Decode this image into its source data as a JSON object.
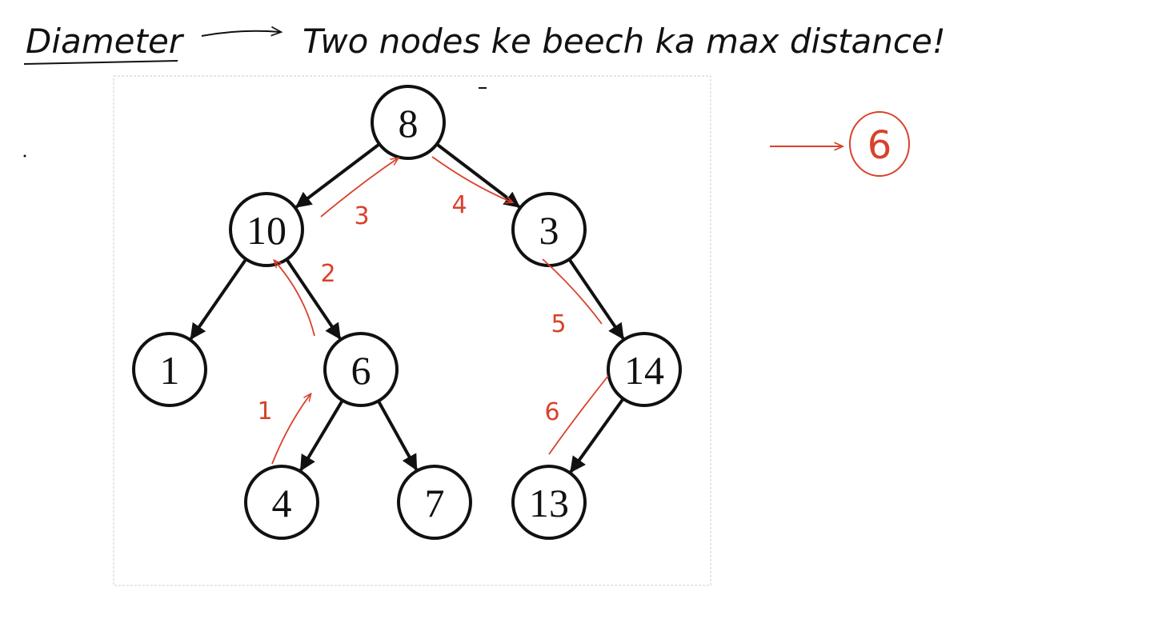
{
  "heading": {
    "term": "Diameter",
    "definition": "Two nodes ke beech ka max distance!"
  },
  "answer": "6",
  "tree": {
    "nodes": [
      {
        "id": "n8",
        "label": "8"
      },
      {
        "id": "n10",
        "label": "10"
      },
      {
        "id": "n3",
        "label": "3"
      },
      {
        "id": "n1",
        "label": "1"
      },
      {
        "id": "n6",
        "label": "6"
      },
      {
        "id": "n14",
        "label": "14"
      },
      {
        "id": "n4",
        "label": "4"
      },
      {
        "id": "n7",
        "label": "7"
      },
      {
        "id": "n13",
        "label": "13"
      }
    ],
    "edges": [
      {
        "from": "n8",
        "to": "n10"
      },
      {
        "from": "n8",
        "to": "n3"
      },
      {
        "from": "n10",
        "to": "n1"
      },
      {
        "from": "n10",
        "to": "n6"
      },
      {
        "from": "n3",
        "to": "n14"
      },
      {
        "from": "n6",
        "to": "n4"
      },
      {
        "from": "n6",
        "to": "n7"
      },
      {
        "from": "n14",
        "to": "n13"
      }
    ]
  },
  "path_steps": [
    "1",
    "2",
    "3",
    "4",
    "5",
    "6"
  ],
  "colors": {
    "ink": "#111111",
    "annotation": "#d9412b"
  }
}
